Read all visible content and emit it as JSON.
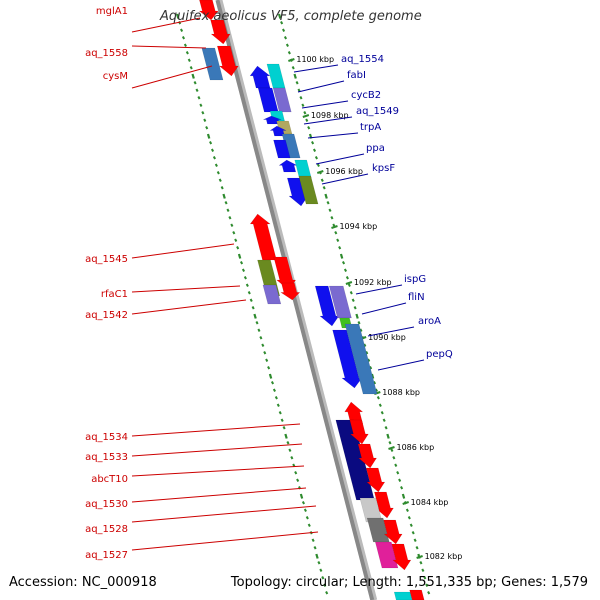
{
  "title": "Aquifex aeolicus VF5, complete genome",
  "footer": {
    "accession": "Accession: NC_000918",
    "summary": "Topology: circular; Length: 1,551,335 bp; Genes: 1,579"
  },
  "colors": {
    "left_label": "#cc0000",
    "right_label": "#000099",
    "backbone": "#888888",
    "tick": "#2e8b2e",
    "red": "#ff0000",
    "blue": "#1010ee",
    "steelblue": "#3a78b8",
    "cyan": "#00d0d0",
    "lavender": "#7a6ad0",
    "olive": "#6a8a20",
    "khaki": "#b0a860",
    "navy": "#0a0a80",
    "gray": "#c8c8c8",
    "darkgray": "#707070",
    "magenta": "#e0209a",
    "green": "#40c020"
  },
  "scale_labels": [
    "1100 kbp",
    "1098 kbp",
    "1096 kbp",
    "1094 kbp",
    "1092 kbp",
    "1090 kbp",
    "1088 kbp",
    "1086 kbp",
    "1084 kbp",
    "1082 kbp"
  ],
  "left_labels": [
    "mglA1",
    "aq_1558",
    "cysM",
    "aq_1545",
    "rfaC1",
    "aq_1542",
    "aq_1534",
    "aq_1533",
    "abcT10",
    "aq_1530",
    "aq_1528",
    "aq_1527"
  ],
  "right_labels": [
    "aq_1554",
    "fabI",
    "cycB2",
    "aq_1549",
    "trpA",
    "ppa",
    "kpsF",
    "ispG",
    "fliN",
    "aroA",
    "pepQ"
  ]
}
